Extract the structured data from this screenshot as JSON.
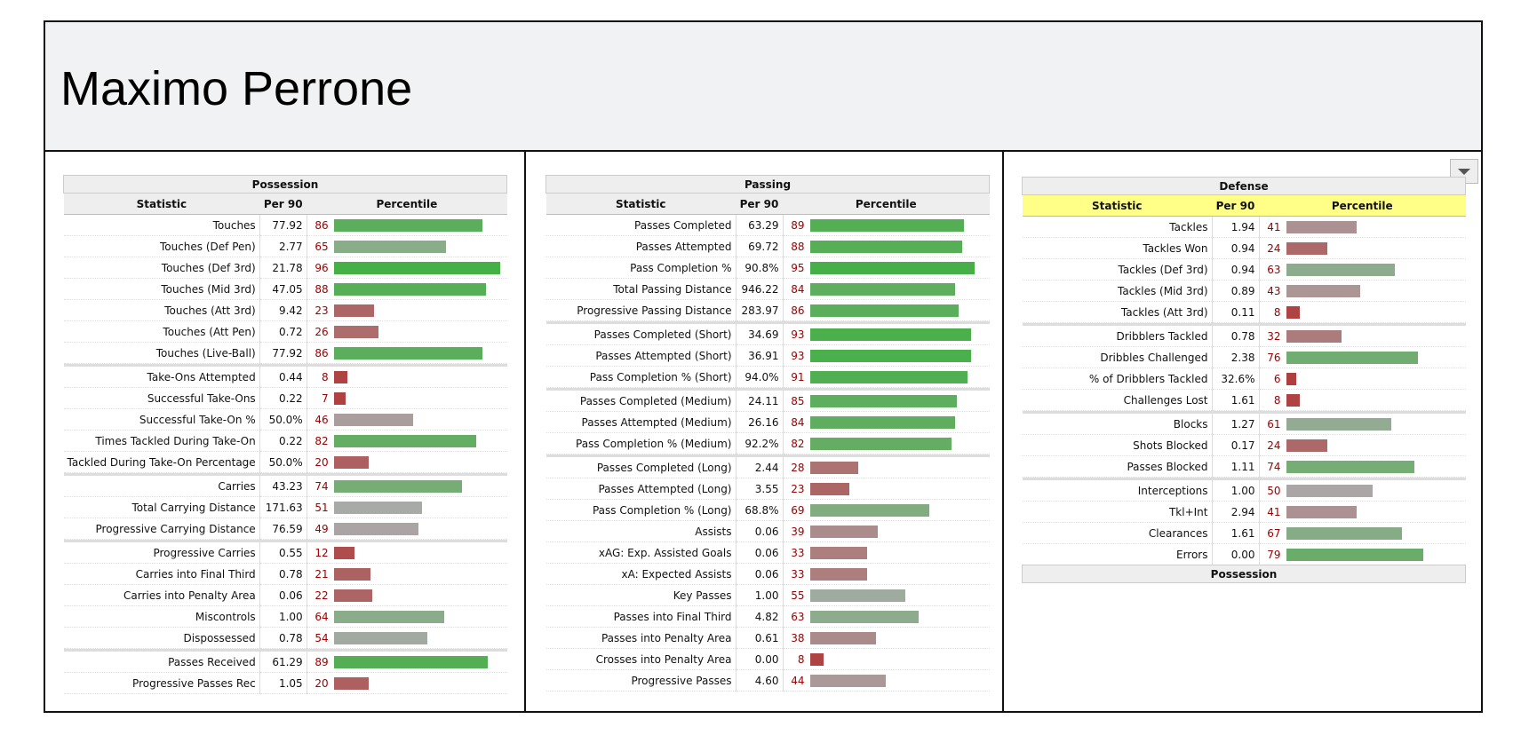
{
  "header": {
    "title": "Maximo Perrone"
  },
  "panels": [
    {
      "title": "Possession",
      "columns": [
        "Statistic",
        "Per 90",
        "Percentile"
      ],
      "groups": [
        [
          {
            "stat": "Touches",
            "per90": "77.92",
            "percentile": 86
          },
          {
            "stat": "Touches (Def Pen)",
            "per90": "2.77",
            "percentile": 65
          },
          {
            "stat": "Touches (Def 3rd)",
            "per90": "21.78",
            "percentile": 96
          },
          {
            "stat": "Touches (Mid 3rd)",
            "per90": "47.05",
            "percentile": 88
          },
          {
            "stat": "Touches (Att 3rd)",
            "per90": "9.42",
            "percentile": 23
          },
          {
            "stat": "Touches (Att Pen)",
            "per90": "0.72",
            "percentile": 26
          },
          {
            "stat": "Touches (Live-Ball)",
            "per90": "77.92",
            "percentile": 86
          }
        ],
        [
          {
            "stat": "Take-Ons Attempted",
            "per90": "0.44",
            "percentile": 8
          },
          {
            "stat": "Successful Take-Ons",
            "per90": "0.22",
            "percentile": 7
          },
          {
            "stat": "Successful Take-On %",
            "per90": "50.0%",
            "percentile": 46
          },
          {
            "stat": "Times Tackled During Take-On",
            "per90": "0.22",
            "percentile": 82
          },
          {
            "stat": "Tackled During Take-On Percentage",
            "per90": "50.0%",
            "percentile": 20
          }
        ],
        [
          {
            "stat": "Carries",
            "per90": "43.23",
            "percentile": 74
          },
          {
            "stat": "Total Carrying Distance",
            "per90": "171.63",
            "percentile": 51
          },
          {
            "stat": "Progressive Carrying Distance",
            "per90": "76.59",
            "percentile": 49
          }
        ],
        [
          {
            "stat": "Progressive Carries",
            "per90": "0.55",
            "percentile": 12
          },
          {
            "stat": "Carries into Final Third",
            "per90": "0.78",
            "percentile": 21
          },
          {
            "stat": "Carries into Penalty Area",
            "per90": "0.06",
            "percentile": 22
          },
          {
            "stat": "Miscontrols",
            "per90": "1.00",
            "percentile": 64
          },
          {
            "stat": "Dispossessed",
            "per90": "0.78",
            "percentile": 54
          }
        ],
        [
          {
            "stat": "Passes Received",
            "per90": "61.29",
            "percentile": 89
          },
          {
            "stat": "Progressive Passes Rec",
            "per90": "1.05",
            "percentile": 20
          }
        ]
      ]
    },
    {
      "title": "Passing",
      "columns": [
        "Statistic",
        "Per 90",
        "Percentile"
      ],
      "groups": [
        [
          {
            "stat": "Passes Completed",
            "per90": "63.29",
            "percentile": 89
          },
          {
            "stat": "Passes Attempted",
            "per90": "69.72",
            "percentile": 88
          },
          {
            "stat": "Pass Completion %",
            "per90": "90.8%",
            "percentile": 95
          },
          {
            "stat": "Total Passing Distance",
            "per90": "946.22",
            "percentile": 84
          },
          {
            "stat": "Progressive Passing Distance",
            "per90": "283.97",
            "percentile": 86
          }
        ],
        [
          {
            "stat": "Passes Completed (Short)",
            "per90": "34.69",
            "percentile": 93
          },
          {
            "stat": "Passes Attempted (Short)",
            "per90": "36.91",
            "percentile": 93
          },
          {
            "stat": "Pass Completion % (Short)",
            "per90": "94.0%",
            "percentile": 91
          }
        ],
        [
          {
            "stat": "Passes Completed (Medium)",
            "per90": "24.11",
            "percentile": 85
          },
          {
            "stat": "Passes Attempted (Medium)",
            "per90": "26.16",
            "percentile": 84
          },
          {
            "stat": "Pass Completion % (Medium)",
            "per90": "92.2%",
            "percentile": 82
          }
        ],
        [
          {
            "stat": "Passes Completed (Long)",
            "per90": "2.44",
            "percentile": 28
          },
          {
            "stat": "Passes Attempted (Long)",
            "per90": "3.55",
            "percentile": 23
          },
          {
            "stat": "Pass Completion % (Long)",
            "per90": "68.8%",
            "percentile": 69
          },
          {
            "stat": "Assists",
            "per90": "0.06",
            "percentile": 39
          },
          {
            "stat": "xAG: Exp. Assisted Goals",
            "per90": "0.06",
            "percentile": 33
          },
          {
            "stat": "xA: Expected Assists",
            "per90": "0.06",
            "percentile": 33
          },
          {
            "stat": "Key Passes",
            "per90": "1.00",
            "percentile": 55
          },
          {
            "stat": "Passes into Final Third",
            "per90": "4.82",
            "percentile": 63
          },
          {
            "stat": "Passes into Penalty Area",
            "per90": "0.61",
            "percentile": 38
          },
          {
            "stat": "Crosses into Penalty Area",
            "per90": "0.00",
            "percentile": 8
          },
          {
            "stat": "Progressive Passes",
            "per90": "4.60",
            "percentile": 44
          }
        ]
      ]
    },
    {
      "title": "Defense",
      "columns": [
        "Statistic",
        "Per 90",
        "Percentile"
      ],
      "groups": [
        [
          {
            "stat": "Tackles",
            "per90": "1.94",
            "percentile": 41
          },
          {
            "stat": "Tackles Won",
            "per90": "0.94",
            "percentile": 24
          },
          {
            "stat": "Tackles (Def 3rd)",
            "per90": "0.94",
            "percentile": 63
          },
          {
            "stat": "Tackles (Mid 3rd)",
            "per90": "0.89",
            "percentile": 43
          },
          {
            "stat": "Tackles (Att 3rd)",
            "per90": "0.11",
            "percentile": 8
          }
        ],
        [
          {
            "stat": "Dribblers Tackled",
            "per90": "0.78",
            "percentile": 32
          },
          {
            "stat": "Dribbles Challenged",
            "per90": "2.38",
            "percentile": 76
          },
          {
            "stat": "% of Dribblers Tackled",
            "per90": "32.6%",
            "percentile": 6
          },
          {
            "stat": "Challenges Lost",
            "per90": "1.61",
            "percentile": 8
          }
        ],
        [
          {
            "stat": "Blocks",
            "per90": "1.27",
            "percentile": 61
          },
          {
            "stat": "Shots Blocked",
            "per90": "0.17",
            "percentile": 24
          },
          {
            "stat": "Passes Blocked",
            "per90": "1.11",
            "percentile": 74
          }
        ],
        [
          {
            "stat": "Interceptions",
            "per90": "1.00",
            "percentile": 50
          },
          {
            "stat": "Tkl+Int",
            "per90": "2.94",
            "percentile": 41
          },
          {
            "stat": "Clearances",
            "per90": "1.61",
            "percentile": 67
          },
          {
            "stat": "Errors",
            "per90": "0.00",
            "percentile": 79
          }
        ]
      ],
      "next_title": "Possession"
    }
  ]
}
